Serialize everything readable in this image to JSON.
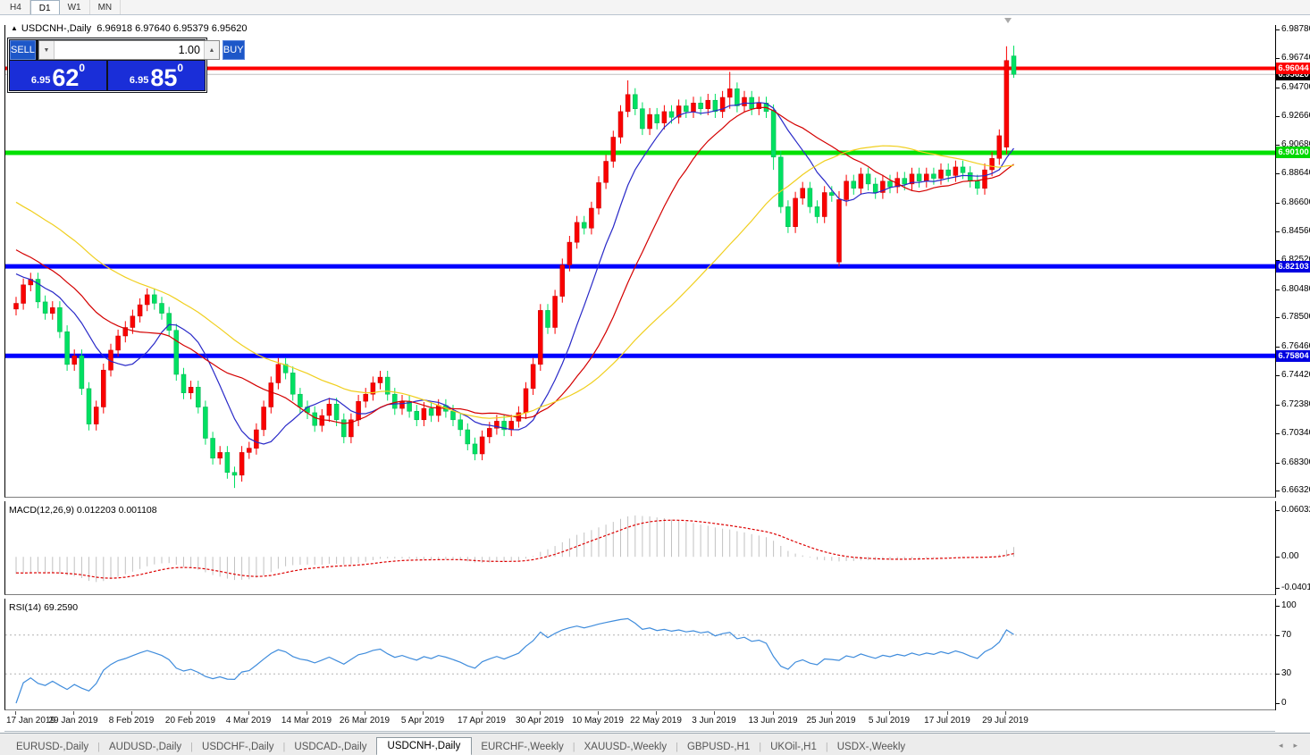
{
  "toolbar": {
    "timeframes": [
      {
        "label": "H4",
        "active": false
      },
      {
        "label": "D1",
        "active": true
      },
      {
        "label": "W1",
        "active": false
      },
      {
        "label": "MN",
        "active": false
      }
    ]
  },
  "chart_header": {
    "collapse_icon": "▲",
    "title": "USDCNH-,Daily",
    "ohlc": "6.96918 6.97640 6.95379 6.95620"
  },
  "trade_panel": {
    "sell_label": "SELL",
    "buy_label": "BUY",
    "volume": "1.00",
    "down_arrow": "▼",
    "up_arrow": "▲",
    "sell_price_small": "6.95",
    "sell_price_big": "62",
    "sell_price_sup": "0",
    "buy_price_small": "6.95",
    "buy_price_big": "85",
    "buy_price_sup": "0"
  },
  "price_axis": {
    "ticks": [
      "6.98780",
      "6.96740",
      "6.94700",
      "6.92660",
      "6.90680",
      "6.88640",
      "6.86600",
      "6.84560",
      "6.82520",
      "6.80480",
      "6.78500",
      "6.76460",
      "6.74420",
      "6.72380",
      "6.70340",
      "6.68300",
      "6.66320"
    ]
  },
  "hlines": [
    {
      "price": 6.9562,
      "label": "6.95620",
      "color": "#c0c0c0",
      "width": 1,
      "tag_bg": "#000000",
      "tag_fg": "#ffffff"
    },
    {
      "price": 6.96044,
      "label": "6.96044",
      "color": "#fe0000",
      "width": 4,
      "tag_bg": "#fe0000",
      "tag_fg": "#ffffff"
    },
    {
      "price": 6.901,
      "label": "6.90100",
      "color": "#00e000",
      "width": 5,
      "tag_bg": "#00d800",
      "tag_fg": "#ffffff"
    },
    {
      "price": 6.82103,
      "label": "6.82103",
      "color": "#0000fe",
      "width": 5,
      "tag_bg": "#0000e0",
      "tag_fg": "#ffffff"
    },
    {
      "price": 6.75804,
      "label": "6.75804",
      "color": "#0000fe",
      "width": 5,
      "tag_bg": "#0000e0",
      "tag_fg": "#ffffff"
    }
  ],
  "macd_panel": {
    "label": "MACD(12,26,9) 0.012203 0.001108",
    "axis": [
      "0.060329",
      "0.00",
      "-0.040135"
    ],
    "range": {
      "max": 0.060329,
      "min": -0.040135
    },
    "values": {
      "main": 0.012203,
      "signal": 0.001108
    }
  },
  "rsi_panel": {
    "label": "RSI(14) 69.2590",
    "value": 69.259,
    "axis": [
      "100",
      "70",
      "30",
      "0"
    ],
    "levels": [
      70,
      30
    ]
  },
  "date_axis": {
    "labels": [
      "17 Jan 2019",
      "29 Jan 2019",
      "8 Feb 2019",
      "20 Feb 2019",
      "4 Mar 2019",
      "14 Mar 2019",
      "26 Mar 2019",
      "5 Apr 2019",
      "17 Apr 2019",
      "30 Apr 2019",
      "10 May 2019",
      "22 May 2019",
      "3 Jun 2019",
      "13 Jun 2019",
      "25 Jun 2019",
      "5 Jul 2019",
      "17 Jul 2019",
      "29 Jul 2019"
    ]
  },
  "tabs": {
    "items": [
      {
        "label": "EURUSD-,Daily",
        "active": false
      },
      {
        "label": "AUDUSD-,Daily",
        "active": false
      },
      {
        "label": "USDCHF-,Daily",
        "active": false
      },
      {
        "label": "USDCAD-,Daily",
        "active": false
      },
      {
        "label": "USDCNH-,Daily",
        "active": true
      },
      {
        "label": "EURCHF-,Weekly",
        "active": false
      },
      {
        "label": "XAUUSD-,Weekly",
        "active": false
      },
      {
        "label": "GBPUSD-,H1",
        "active": false
      },
      {
        "label": "UKOil-,H1",
        "active": false
      },
      {
        "label": "USDX-,Weekly",
        "active": false
      }
    ],
    "scroll_left": "◂",
    "scroll_right": "▸"
  },
  "chart_data": {
    "type": "candlestick",
    "symbol": "USDCNH",
    "timeframe": "Daily",
    "current_bar": {
      "open": 6.96918,
      "high": 6.9764,
      "low": 6.95379,
      "close": 6.9562
    },
    "default_wick": 0.0045,
    "pre_closes": [
      6.935,
      6.931,
      6.928,
      6.925,
      6.921,
      6.918,
      6.915,
      6.911,
      6.908,
      6.905,
      6.901,
      6.898,
      6.895,
      6.891,
      6.888,
      6.885,
      6.881,
      6.878,
      6.875,
      6.871,
      6.868,
      6.865,
      6.861,
      6.858,
      6.855,
      6.851,
      6.848,
      6.845,
      6.841,
      6.838,
      6.835,
      6.831,
      6.828,
      6.825,
      6.821,
      6.818,
      6.815,
      6.811,
      6.808,
      6.805
    ],
    "closes": [
      6.795,
      6.808,
      6.812,
      6.796,
      6.788,
      6.792,
      6.775,
      6.752,
      6.758,
      6.735,
      6.71,
      6.722,
      6.748,
      6.762,
      6.772,
      6.778,
      6.786,
      6.794,
      6.801,
      6.795,
      6.788,
      6.776,
      6.745,
      6.732,
      6.736,
      6.722,
      6.7,
      6.686,
      6.69,
      6.676,
      6.674,
      6.69,
      6.693,
      6.706,
      6.722,
      6.739,
      6.752,
      6.746,
      6.731,
      6.722,
      6.718,
      6.709,
      6.716,
      6.724,
      6.713,
      6.701,
      6.713,
      6.726,
      6.731,
      6.739,
      6.743,
      6.731,
      6.721,
      6.726,
      6.719,
      6.713,
      6.721,
      6.716,
      6.723,
      6.719,
      6.713,
      6.706,
      6.696,
      6.689,
      6.701,
      6.707,
      6.712,
      6.706,
      6.712,
      6.718,
      6.735,
      6.752,
      6.79,
      6.778,
      6.8,
      6.822,
      6.838,
      6.852,
      6.848,
      6.862,
      6.88,
      6.895,
      6.912,
      6.93,
      6.942,
      6.932,
      6.918,
      6.928,
      6.922,
      6.93,
      6.926,
      6.934,
      6.93,
      6.936,
      6.932,
      6.938,
      6.93,
      6.94,
      6.946,
      6.934,
      6.94,
      6.932,
      6.936,
      6.93,
      6.898,
      6.863,
      6.849,
      6.869,
      6.876,
      6.863,
      6.856,
      6.873,
      6.871,
      6.868,
      6.881,
      6.876,
      6.886,
      6.879,
      6.873,
      6.881,
      6.877,
      6.883,
      6.879,
      6.886,
      6.881,
      6.886,
      6.883,
      6.889,
      6.885,
      6.891,
      6.887,
      6.881,
      6.876,
      6.889,
      6.897,
      6.913,
      6.966,
      6.9562
    ],
    "candle_overrides": {
      "30": [
        6.676,
        6.68,
        6.665,
        6.674
      ],
      "84": [
        6.93,
        6.952,
        6.926,
        6.942
      ],
      "98": [
        6.94,
        6.958,
        6.932,
        6.946
      ],
      "104": [
        6.931,
        6.935,
        6.889,
        6.898
      ],
      "113": [
        6.824,
        6.874,
        6.821,
        6.868
      ],
      "136": [
        6.905,
        6.976,
        6.9,
        6.966
      ],
      "137": [
        6.96918,
        6.9764,
        6.95379,
        6.9562
      ]
    },
    "moving_averages": [
      {
        "period": 10,
        "color": "#2929c8"
      },
      {
        "period": 20,
        "color": "#d40000"
      },
      {
        "period": 40,
        "color": "#f0cf1e"
      }
    ],
    "macd": {
      "fast": 12,
      "slow": 26,
      "signal": 9
    },
    "rsi": {
      "period": 14
    },
    "style": {
      "bull_fill": "#fa0000",
      "bull_stroke": "#c40000",
      "bear_fill": "#00e062",
      "bear_stroke": "#00b050",
      "macd_hist": "#c2c2c2",
      "macd_signal": "#dd0000",
      "rsi_line": "#3f8cdc",
      "level_dots": "#b4b4b4"
    }
  }
}
